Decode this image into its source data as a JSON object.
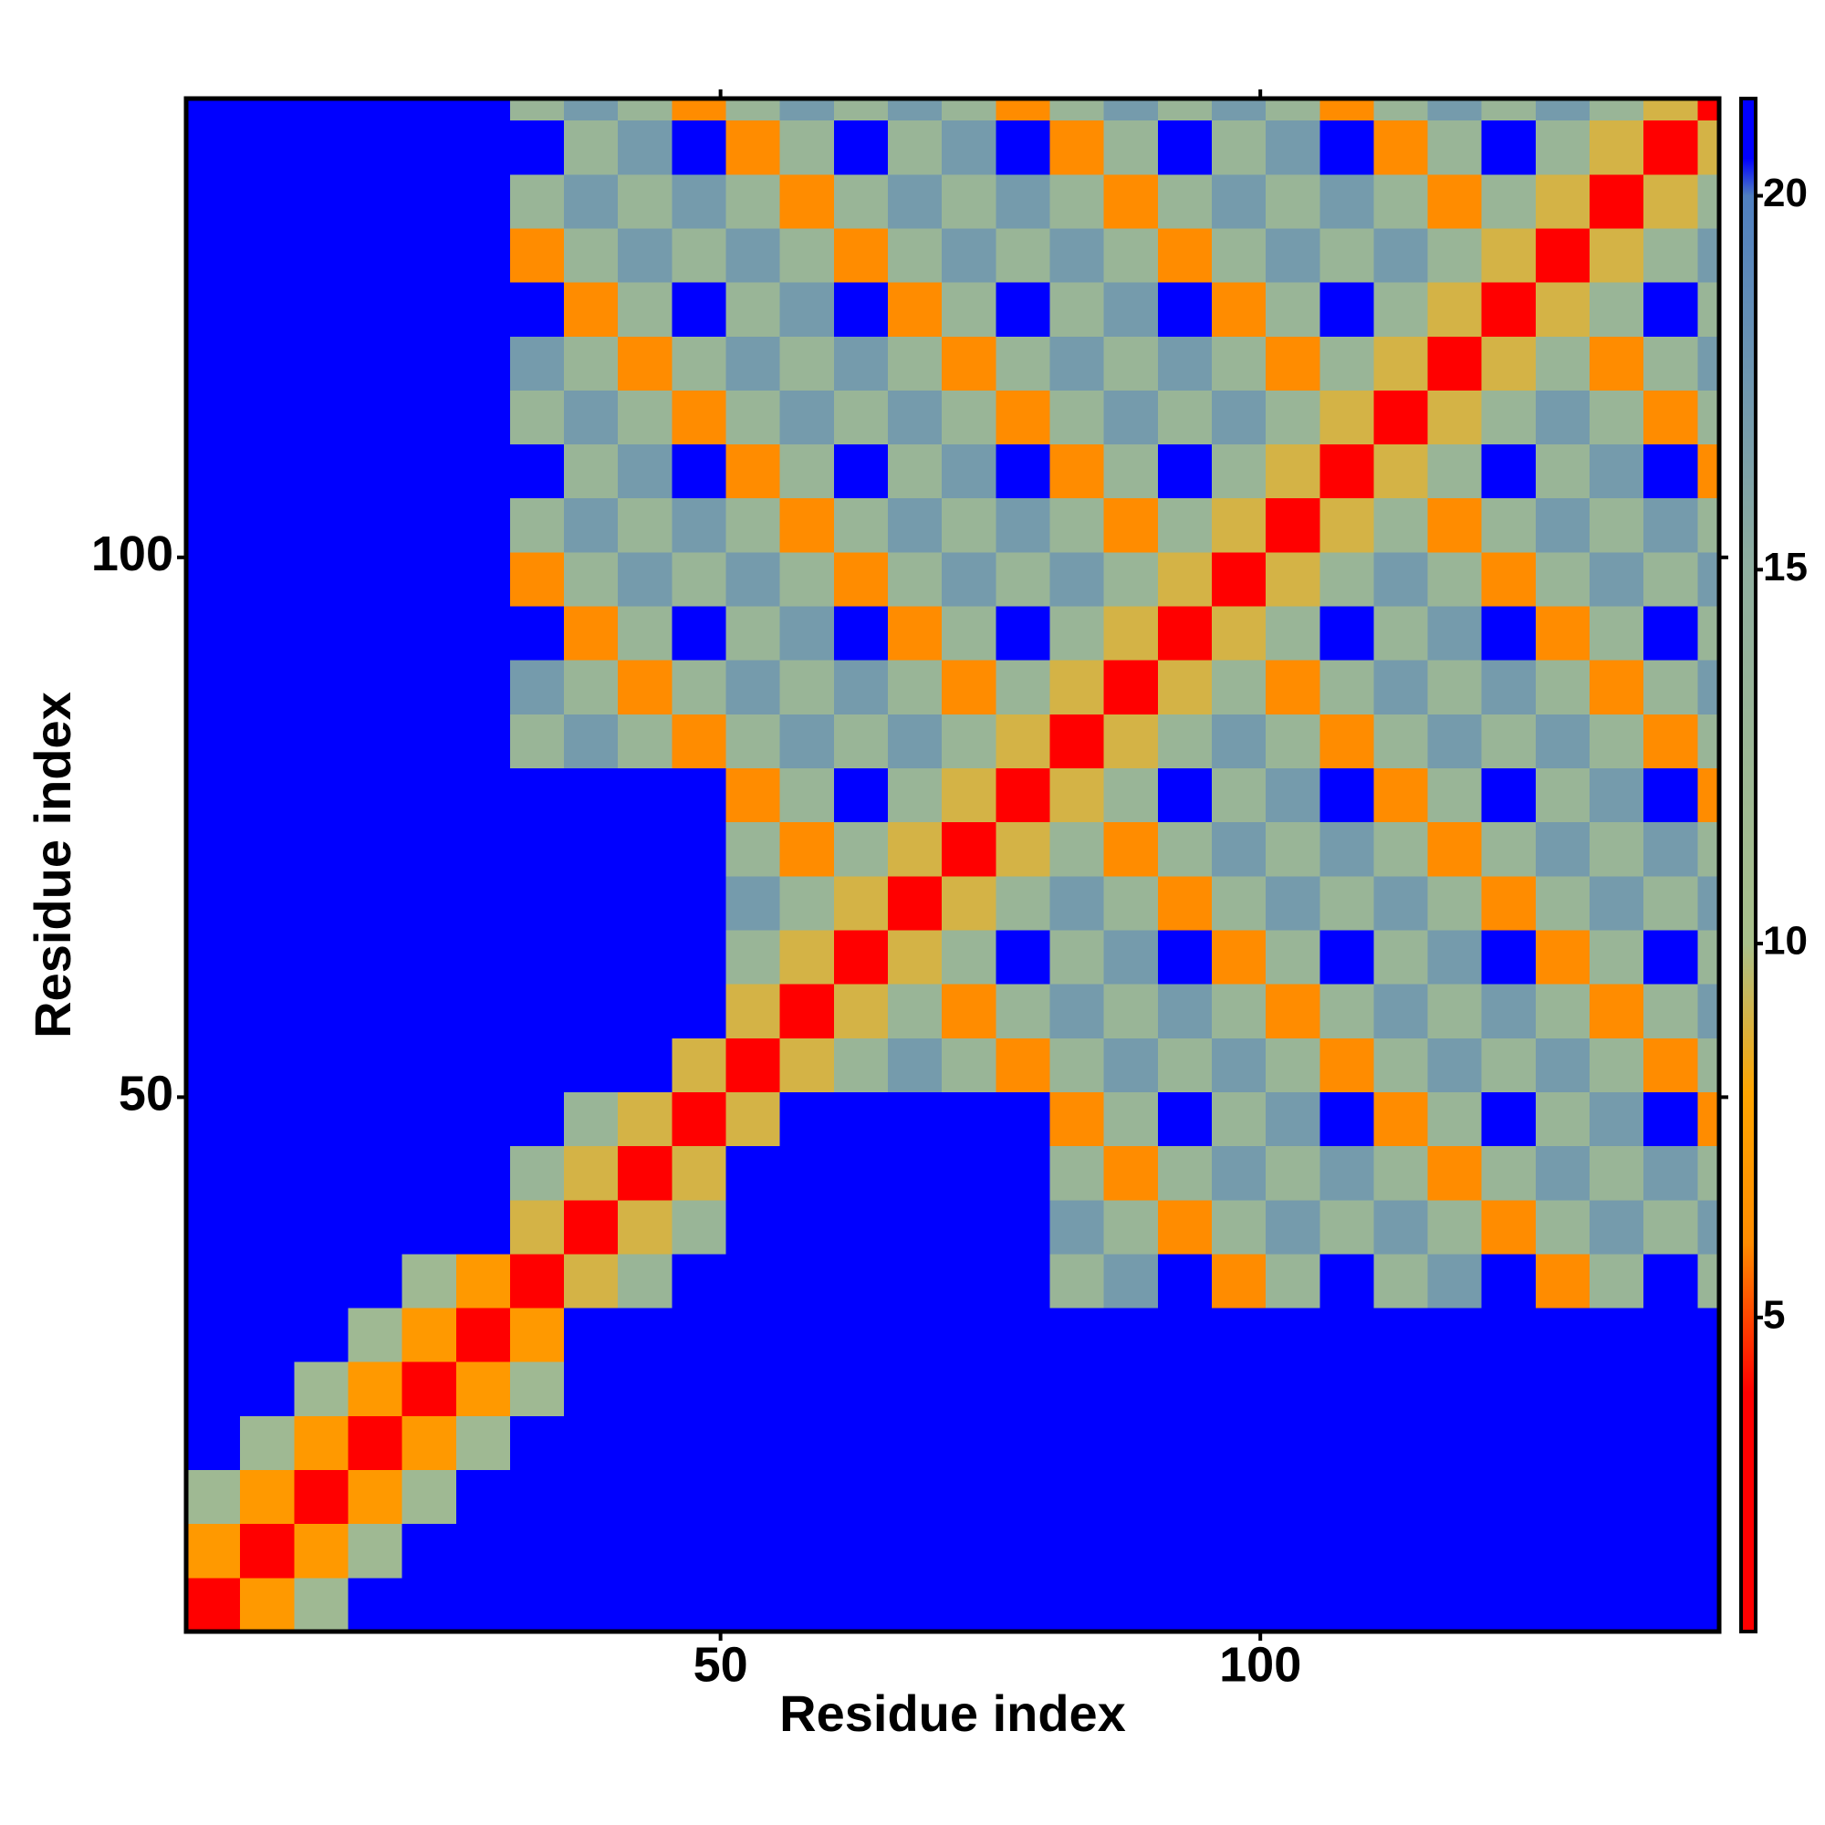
{
  "chart_data": {
    "type": "heatmap",
    "xlabel": "Residue index",
    "ylabel": "Residue index",
    "xlim": [
      0.5,
      142.5
    ],
    "ylim": [
      0.5,
      142.5
    ],
    "xticks": [
      50,
      100
    ],
    "yticks": [
      50,
      100
    ],
    "xbins": [
      0.5,
      5.5,
      10.5,
      15.5,
      20.5,
      25.5,
      30.5,
      35.5,
      40.5,
      45.5,
      50.5,
      55.5,
      60.5,
      65.5,
      70.5,
      75.5,
      80.5,
      85.5,
      90.5,
      95.5,
      100.5,
      105.5,
      110.5,
      115.5,
      120.5,
      125.5,
      130.5,
      135.5,
      140.5,
      142.5
    ],
    "ybins": [
      0.5,
      5.5,
      10.5,
      15.5,
      20.5,
      25.5,
      30.5,
      35.5,
      40.5,
      45.5,
      50.5,
      55.5,
      60.5,
      65.5,
      70.5,
      75.5,
      80.5,
      85.5,
      90.5,
      95.5,
      100.5,
      105.5,
      110.5,
      115.5,
      120.5,
      125.5,
      130.5,
      135.5,
      140.5,
      142.5
    ],
    "zlim": [
      0.8,
      21.3
    ],
    "zticks": [
      5,
      10,
      15,
      20
    ],
    "colorscale": [
      [
        0.8,
        "#ff0000"
      ],
      [
        4,
        "#ff0000"
      ],
      [
        6,
        "#ff8c00"
      ],
      [
        8,
        "#ffa500"
      ],
      [
        10,
        "#a9c08b"
      ],
      [
        15,
        "#8fae9f"
      ],
      [
        20,
        "#4f7fc0"
      ],
      [
        20.5,
        "#0000ff"
      ],
      [
        21.3,
        "#0000ff"
      ]
    ],
    "z": [
      [
        2,
        7,
        12,
        21,
        21,
        21,
        21,
        21,
        21,
        21,
        21,
        21,
        21,
        21,
        21,
        21,
        21,
        21,
        21,
        21,
        21,
        21,
        21,
        21,
        21,
        21,
        21,
        21,
        21
      ],
      [
        7,
        2,
        7,
        12,
        21,
        21,
        21,
        21,
        21,
        21,
        21,
        21,
        21,
        21,
        21,
        21,
        21,
        21,
        21,
        21,
        21,
        21,
        21,
        21,
        21,
        21,
        21,
        21,
        21
      ],
      [
        12,
        7,
        2,
        7,
        12,
        21,
        21,
        21,
        21,
        21,
        21,
        21,
        21,
        21,
        21,
        21,
        21,
        21,
        21,
        21,
        21,
        21,
        21,
        21,
        21,
        21,
        21,
        21,
        21
      ],
      [
        21,
        12,
        7,
        2,
        7,
        12,
        21,
        21,
        21,
        21,
        21,
        21,
        21,
        21,
        21,
        21,
        21,
        21,
        21,
        21,
        21,
        21,
        21,
        21,
        21,
        21,
        21,
        21,
        21
      ],
      [
        21,
        21,
        12,
        7,
        2,
        7,
        12,
        21,
        21,
        21,
        21,
        21,
        21,
        21,
        21,
        21,
        21,
        21,
        21,
        21,
        21,
        21,
        21,
        21,
        21,
        21,
        21,
        21,
        21
      ],
      [
        21,
        21,
        21,
        12,
        7,
        2,
        7,
        21,
        21,
        21,
        21,
        21,
        21,
        21,
        21,
        21,
        21,
        21,
        21,
        21,
        21,
        21,
        21,
        21,
        21,
        21,
        21,
        21,
        21
      ],
      [
        21,
        21,
        21,
        21,
        12,
        7,
        2,
        9,
        13,
        21,
        21,
        21,
        21,
        21,
        21,
        21,
        13,
        17,
        21,
        6,
        13,
        21,
        13,
        17,
        21,
        6,
        13,
        21,
        13
      ],
      [
        21,
        21,
        21,
        21,
        21,
        21,
        9,
        2,
        9,
        13,
        21,
        21,
        21,
        21,
        21,
        21,
        17,
        13,
        6,
        13,
        17,
        13,
        17,
        13,
        6,
        13,
        17,
        13,
        17
      ],
      [
        21,
        21,
        21,
        21,
        21,
        21,
        13,
        9,
        2,
        9,
        21,
        21,
        21,
        21,
        21,
        21,
        13,
        6,
        13,
        17,
        13,
        17,
        13,
        6,
        13,
        17,
        13,
        17,
        13
      ],
      [
        21,
        21,
        21,
        21,
        21,
        21,
        21,
        13,
        9,
        2,
        9,
        21,
        21,
        21,
        21,
        21,
        6,
        13,
        21,
        13,
        17,
        21,
        6,
        13,
        21,
        13,
        17,
        21,
        6
      ],
      [
        21,
        21,
        21,
        21,
        21,
        21,
        21,
        21,
        21,
        9,
        2,
        9,
        13,
        17,
        13,
        6,
        13,
        17,
        13,
        17,
        13,
        6,
        13,
        17,
        13,
        17,
        13,
        6,
        13
      ],
      [
        21,
        21,
        21,
        21,
        21,
        21,
        21,
        21,
        21,
        21,
        9,
        2,
        9,
        13,
        6,
        13,
        17,
        13,
        17,
        13,
        6,
        13,
        17,
        13,
        17,
        13,
        6,
        13,
        17
      ],
      [
        21,
        21,
        21,
        21,
        21,
        21,
        21,
        21,
        21,
        21,
        13,
        9,
        2,
        9,
        13,
        21,
        13,
        17,
        21,
        6,
        13,
        21,
        13,
        17,
        21,
        6,
        13,
        21,
        13
      ],
      [
        21,
        21,
        21,
        21,
        21,
        21,
        21,
        21,
        21,
        21,
        17,
        13,
        9,
        2,
        9,
        13,
        17,
        13,
        6,
        13,
        17,
        13,
        17,
        13,
        6,
        13,
        17,
        13,
        17
      ],
      [
        21,
        21,
        21,
        21,
        21,
        21,
        21,
        21,
        21,
        21,
        13,
        6,
        13,
        9,
        2,
        9,
        13,
        6,
        13,
        17,
        13,
        17,
        13,
        6,
        13,
        17,
        13,
        17,
        13
      ],
      [
        21,
        21,
        21,
        21,
        21,
        21,
        21,
        21,
        21,
        21,
        6,
        13,
        21,
        13,
        9,
        2,
        9,
        13,
        21,
        13,
        17,
        21,
        6,
        13,
        21,
        13,
        17,
        21,
        6
      ],
      [
        21,
        21,
        21,
        21,
        21,
        21,
        13,
        17,
        13,
        6,
        13,
        17,
        13,
        17,
        13,
        9,
        2,
        9,
        13,
        17,
        13,
        6,
        13,
        17,
        13,
        17,
        13,
        6,
        13
      ],
      [
        21,
        21,
        21,
        21,
        21,
        21,
        17,
        13,
        6,
        13,
        17,
        13,
        17,
        13,
        6,
        13,
        9,
        2,
        9,
        13,
        6,
        13,
        17,
        13,
        17,
        13,
        6,
        13,
        17
      ],
      [
        21,
        21,
        21,
        21,
        21,
        21,
        21,
        6,
        13,
        21,
        13,
        17,
        21,
        6,
        13,
        21,
        13,
        9,
        2,
        9,
        13,
        21,
        13,
        17,
        21,
        6,
        13,
        21,
        13
      ],
      [
        21,
        21,
        21,
        21,
        21,
        21,
        6,
        13,
        17,
        13,
        17,
        13,
        6,
        13,
        17,
        13,
        17,
        13,
        9,
        2,
        9,
        13,
        17,
        13,
        6,
        13,
        17,
        13,
        17
      ],
      [
        21,
        21,
        21,
        21,
        21,
        21,
        13,
        17,
        13,
        17,
        13,
        6,
        13,
        17,
        13,
        17,
        13,
        6,
        13,
        9,
        2,
        9,
        13,
        6,
        13,
        17,
        13,
        17,
        13
      ],
      [
        21,
        21,
        21,
        21,
        21,
        21,
        21,
        13,
        17,
        21,
        6,
        13,
        21,
        13,
        17,
        21,
        6,
        13,
        21,
        13,
        9,
        2,
        9,
        13,
        21,
        13,
        17,
        21,
        6
      ],
      [
        21,
        21,
        21,
        21,
        21,
        21,
        13,
        17,
        13,
        6,
        13,
        17,
        13,
        17,
        13,
        6,
        13,
        17,
        13,
        17,
        13,
        9,
        2,
        9,
        13,
        17,
        13,
        6,
        13
      ],
      [
        21,
        21,
        21,
        21,
        21,
        21,
        17,
        13,
        6,
        13,
        17,
        13,
        17,
        13,
        6,
        13,
        17,
        13,
        17,
        13,
        6,
        13,
        9,
        2,
        9,
        13,
        6,
        13,
        17
      ],
      [
        21,
        21,
        21,
        21,
        21,
        21,
        21,
        6,
        13,
        21,
        13,
        17,
        21,
        6,
        13,
        21,
        13,
        17,
        21,
        6,
        13,
        21,
        13,
        9,
        2,
        9,
        13,
        21,
        13
      ],
      [
        21,
        21,
        21,
        21,
        21,
        21,
        6,
        13,
        17,
        13,
        17,
        13,
        6,
        13,
        17,
        13,
        17,
        13,
        6,
        13,
        17,
        13,
        17,
        13,
        9,
        2,
        9,
        13,
        17
      ],
      [
        21,
        21,
        21,
        21,
        21,
        21,
        13,
        17,
        13,
        17,
        13,
        6,
        13,
        17,
        13,
        17,
        13,
        6,
        13,
        17,
        13,
        17,
        13,
        6,
        13,
        9,
        2,
        9,
        13
      ],
      [
        21,
        21,
        21,
        21,
        21,
        21,
        21,
        13,
        17,
        21,
        6,
        13,
        21,
        13,
        17,
        21,
        6,
        13,
        21,
        13,
        17,
        21,
        6,
        13,
        21,
        13,
        9,
        2,
        9
      ],
      [
        21,
        21,
        21,
        21,
        21,
        21,
        13,
        17,
        13,
        6,
        13,
        17,
        13,
        17,
        13,
        6,
        13,
        17,
        13,
        17,
        13,
        6,
        13,
        17,
        13,
        17,
        13,
        9,
        2
      ]
    ]
  }
}
